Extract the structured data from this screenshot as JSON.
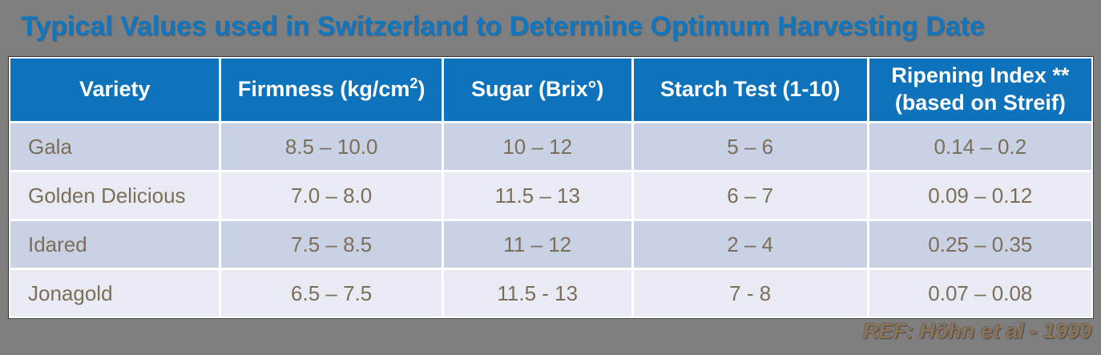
{
  "title": {
    "text": "Typical Values used in Switzerland to Determine Optimum Harvesting Date"
  },
  "colors": {
    "background_gray": "#7F7F7F",
    "title_blue": "#1176BD",
    "header_blue": "#0E73BA",
    "row_dark": "#C9D2E4",
    "row_light": "#E9EBF4",
    "cell_text_brown": "#7D6E59",
    "footer_text_brown": "#8D7456"
  },
  "table": {
    "header": {
      "variety": "Variety",
      "firmness_pre": "Firmness (kg/cm",
      "firmness_sup": "2",
      "firmness_post": ")",
      "sugar": "Sugar (Brix°)",
      "starch": "Starch Test (1-10)",
      "ripening_line1": "Ripening Index **",
      "ripening_line2": "(based on Streif)"
    }
  },
  "chart_data": {
    "type": "table",
    "title": "Typical Values used in Switzerland to Determine Optimum Harvesting Date",
    "columns": [
      "Variety",
      "Firmness (kg/cm2)",
      "Sugar (Brix°)",
      "Starch Test (1-10)",
      "Ripening Index ** (based on Streif)"
    ],
    "rows": [
      [
        "Gala",
        "8.5 – 10.0",
        "10 – 12",
        "5 – 6",
        "0.14 – 0.2"
      ],
      [
        "Golden Delicious",
        "7.0 – 8.0",
        "11.5 – 13",
        "6 – 7",
        "0.09 – 0.12"
      ],
      [
        "Idared",
        "7.5 – 8.5",
        "11 – 12",
        "2 – 4",
        "0.25 – 0.35"
      ],
      [
        "Jonagold",
        "6.5 – 7.5",
        "11.5 - 13",
        "7 - 8",
        "0.07 – 0.08"
      ]
    ]
  },
  "footer": {
    "ref": "REF: Höhn et al - 1999"
  }
}
